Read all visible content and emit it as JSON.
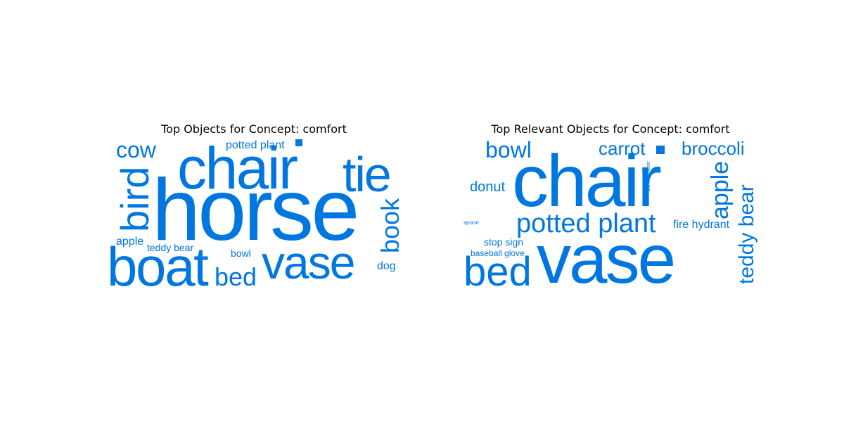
{
  "chart_data": [
    {
      "type": "wordcloud",
      "title": "Top Objects for Concept: comfort",
      "color": "#0077e0",
      "words": [
        {
          "text": "horse",
          "rotate": false
        },
        {
          "text": "chair",
          "rotate": false
        },
        {
          "text": "boat",
          "rotate": false
        },
        {
          "text": "vase",
          "rotate": false
        },
        {
          "text": "tie",
          "rotate": false
        },
        {
          "text": "bird",
          "rotate": true
        },
        {
          "text": "book",
          "rotate": true
        },
        {
          "text": "cow",
          "rotate": false
        },
        {
          "text": "bed",
          "rotate": false
        },
        {
          "text": "potted plant",
          "rotate": false
        },
        {
          "text": "dog",
          "rotate": false
        },
        {
          "text": "apple",
          "rotate": false
        },
        {
          "text": "teddy bear",
          "rotate": false
        },
        {
          "text": "bowl",
          "rotate": false
        }
      ]
    },
    {
      "type": "wordcloud",
      "title": "Top Relevant Objects for Concept: comfort",
      "color": "#0077e0",
      "words": [
        {
          "text": "chair",
          "rotate": false
        },
        {
          "text": "vase",
          "rotate": false
        },
        {
          "text": "bed",
          "rotate": false
        },
        {
          "text": "potted plant",
          "rotate": false
        },
        {
          "text": "teddy bear",
          "rotate": true
        },
        {
          "text": "apple",
          "rotate": true
        },
        {
          "text": "bowl",
          "rotate": false
        },
        {
          "text": "carrot",
          "rotate": false
        },
        {
          "text": "broccoli",
          "rotate": false
        },
        {
          "text": "donut",
          "rotate": false
        },
        {
          "text": "fire hydrant",
          "rotate": false
        },
        {
          "text": "stop sign",
          "rotate": false
        },
        {
          "text": "baseball glove",
          "rotate": false
        },
        {
          "text": "parking meter",
          "rotate": true
        },
        {
          "text": "spoon",
          "rotate": false
        }
      ]
    }
  ]
}
